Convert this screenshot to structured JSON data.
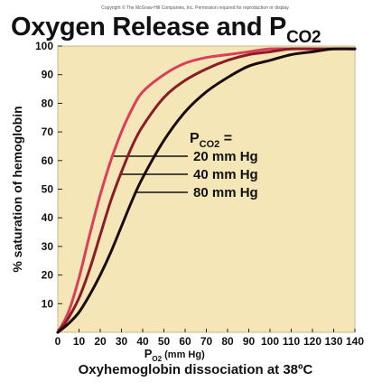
{
  "copyright": "Copyright © The McGraw-Hill Companies, Inc. Permission required for reproduction or display.",
  "title_main": "Oxygen Release and P",
  "title_sub": "CO2",
  "caption": "Oxyhemoglobin dissociation at 38ºC",
  "colors": {
    "plot_bg": "#f5e6b8",
    "frame": "#c9b98a",
    "grid": "#cdbd8e"
  },
  "chart_data": {
    "type": "line",
    "title": "Oxygen Release and PCO2",
    "xlabel": {
      "main": "P",
      "sub": "O2",
      "unit": " (mm Hg)"
    },
    "ylabel": "% saturation of hemoglobin",
    "xlim": [
      0,
      140
    ],
    "ylim": [
      0,
      100
    ],
    "xticks": [
      0,
      10,
      20,
      30,
      40,
      50,
      60,
      70,
      80,
      90,
      100,
      110,
      120,
      130,
      140
    ],
    "yticks": [
      10,
      20,
      30,
      40,
      50,
      60,
      70,
      80,
      90,
      100
    ],
    "grid": false,
    "legend": {
      "title_main": "P",
      "title_sub": "CO2",
      "title_suffix": " =",
      "position": "center-right"
    },
    "series": [
      {
        "name": "20 mm Hg",
        "color": "#d8405a",
        "x": [
          0,
          5,
          10,
          15,
          20,
          25,
          30,
          35,
          40,
          50,
          60,
          70,
          80,
          90,
          100,
          110,
          120,
          130,
          140
        ],
        "y": [
          0,
          7,
          19,
          34,
          48,
          60,
          70,
          78,
          84,
          90,
          94,
          96,
          97,
          98,
          99,
          99,
          99,
          99,
          99
        ]
      },
      {
        "name": "40 mm Hg",
        "color": "#8a1c28",
        "x": [
          0,
          5,
          10,
          15,
          20,
          25,
          30,
          35,
          40,
          50,
          60,
          70,
          80,
          90,
          100,
          110,
          120,
          130,
          140
        ],
        "y": [
          0,
          5,
          12,
          22,
          34,
          46,
          56,
          65,
          72,
          82,
          88,
          92,
          95,
          97,
          98,
          99,
          99,
          99,
          99
        ]
      },
      {
        "name": "80 mm Hg",
        "color": "#1a0c0a",
        "x": [
          0,
          5,
          10,
          15,
          20,
          25,
          30,
          35,
          40,
          50,
          60,
          70,
          80,
          90,
          100,
          110,
          120,
          130,
          140
        ],
        "y": [
          0,
          3,
          7,
          13,
          20,
          28,
          37,
          46,
          54,
          67,
          77,
          84,
          89,
          93,
          95,
          97,
          98,
          99,
          99
        ]
      }
    ]
  }
}
